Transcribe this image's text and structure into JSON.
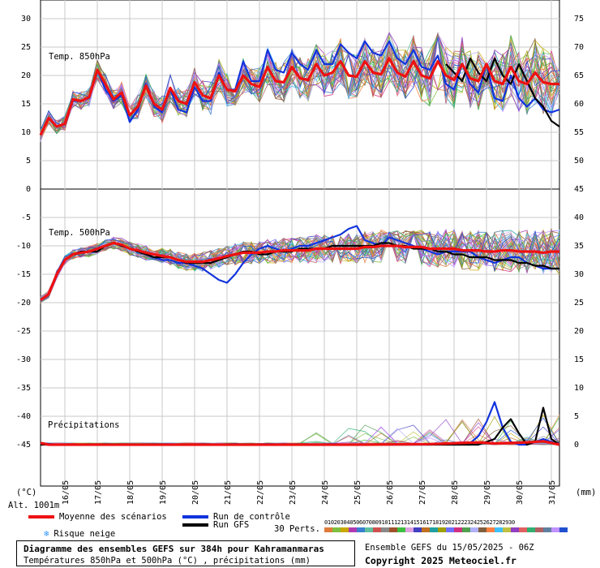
{
  "chart_data": {
    "type": "line",
    "title": "Diagramme des ensembles GEFS sur 384h pour Kahramanmaras",
    "subtitle": "Températures 850hPa et 500hPa (°C) , précipitations (mm)",
    "run_info": "Ensemble GEFS du 15/05/2025 - 06Z",
    "copyright": "Copyright 2025 Meteociel.fr",
    "altitude": "Alt. 1001m",
    "left_unit": "(°C)",
    "right_unit": "(mm)",
    "dates": [
      "16/05",
      "17/05",
      "18/05",
      "19/05",
      "20/05",
      "21/05",
      "22/05",
      "23/05",
      "24/05",
      "25/05",
      "26/05",
      "27/05",
      "28/05",
      "29/05",
      "30/05",
      "31/05"
    ],
    "left_ticks": [
      30,
      25,
      20,
      15,
      10,
      5,
      0,
      -5,
      -10,
      -15,
      -20,
      -25,
      -30,
      -35,
      -40,
      -45
    ],
    "right_ticks_upper": [
      75,
      70,
      65,
      60,
      55,
      50,
      45
    ],
    "right_ticks_lower": [
      40,
      35,
      30,
      25,
      20,
      15,
      10,
      5,
      0
    ],
    "panel_labels": {
      "t850": "Temp. 850hPa",
      "t500": "Temp. 500hPa",
      "precip": "Précipitations"
    },
    "ylim_left": [
      -45,
      30
    ],
    "x_hours": [
      0,
      384
    ],
    "legend": {
      "mean": "Moyenne des scénarios",
      "control": "Run de contrôle",
      "gfs": "Run GFS",
      "snow": "Risque neige",
      "perts": "30 Perts."
    },
    "pert_labels": [
      "01",
      "02",
      "03",
      "04",
      "05",
      "06",
      "07",
      "08",
      "09",
      "10",
      "11",
      "12",
      "13",
      "14",
      "15",
      "16",
      "17",
      "18",
      "19",
      "20",
      "21",
      "22",
      "23",
      "24",
      "25",
      "26",
      "27",
      "28",
      "29",
      "30"
    ],
    "pert_colors": [
      "#e07b39",
      "#7fbf3f",
      "#c8a800",
      "#b03ab0",
      "#3a7fd0",
      "#5fbf9f",
      "#d05050",
      "#8a8a8a",
      "#a0522d",
      "#3fbf3f",
      "#e0a0e0",
      "#4040c0",
      "#c07020",
      "#20a0a0",
      "#a0a000",
      "#7070ff",
      "#d03080",
      "#50a050",
      "#b0b0ff",
      "#806040",
      "#ff8040",
      "#40c0ff",
      "#c0c040",
      "#9040c0",
      "#e06060",
      "#30b070",
      "#b06060",
      "#6080a0",
      "#c090ff",
      "#2050d0"
    ],
    "colors": {
      "mean": "#ee1111",
      "control": "#1133dd",
      "gfs": "#000000",
      "grid": "#c8c8c8",
      "snow": "#3399ff"
    },
    "series": [
      {
        "name": "Moyenne des scénarios",
        "panel": "t850",
        "x": [
          0,
          6,
          12,
          18,
          24,
          30,
          36,
          42,
          48,
          54,
          60,
          66,
          72,
          78,
          84,
          90,
          96,
          102,
          108,
          114,
          120,
          126,
          132,
          138,
          144,
          150,
          156,
          162,
          168,
          174,
          180,
          186,
          192,
          198,
          204,
          210,
          216,
          222,
          228,
          234,
          240,
          246,
          252,
          258,
          264,
          270,
          276,
          282,
          288,
          294,
          300,
          306,
          312,
          318,
          324,
          330,
          336,
          342,
          348,
          354,
          360,
          366,
          372,
          378,
          384
        ],
        "y": [
          9.5,
          12.5,
          11,
          11.5,
          15.8,
          15.5,
          16.2,
          21,
          18.5,
          15.8,
          17,
          13,
          14.5,
          18.2,
          15,
          14,
          17.8,
          15.5,
          15,
          18.8,
          16.5,
          16,
          20,
          17.5,
          17.2,
          20,
          18.5,
          18,
          21.5,
          19,
          18.8,
          21.5,
          19.5,
          19.2,
          22,
          20,
          20.5,
          22.5,
          20,
          19.8,
          22.5,
          20.5,
          20.2,
          23,
          20.5,
          19.8,
          22.5,
          20,
          19.5,
          22.5,
          20,
          19.2,
          22,
          19.5,
          19,
          22,
          19,
          18.5,
          21.5,
          19,
          18.5,
          20.5,
          18.8,
          18.5,
          18.5
        ]
      },
      {
        "name": "Run de contrôle",
        "panel": "t850",
        "x": [
          0,
          6,
          12,
          18,
          24,
          30,
          36,
          42,
          48,
          54,
          60,
          66,
          72,
          78,
          84,
          90,
          96,
          102,
          108,
          114,
          120,
          126,
          132,
          138,
          144,
          150,
          156,
          162,
          168,
          174,
          180,
          186,
          192,
          198,
          204,
          210,
          216,
          222,
          228,
          234,
          240,
          246,
          252,
          258,
          264,
          270,
          276,
          282,
          288,
          294,
          300,
          306,
          312,
          318,
          324,
          330,
          336,
          342,
          348,
          354,
          360,
          366,
          372,
          378,
          384
        ],
        "y": [
          9.5,
          12.5,
          11,
          11.5,
          15.5,
          15.5,
          16,
          21,
          17.5,
          15.5,
          16.5,
          11.8,
          14,
          18.5,
          14.5,
          13.5,
          17.5,
          14,
          13.5,
          18,
          15.5,
          15.5,
          20.5,
          17.5,
          17.5,
          22.5,
          19,
          19,
          24.5,
          21,
          20.5,
          24,
          22,
          21,
          24.5,
          22,
          22,
          25.5,
          24,
          23,
          26,
          24,
          23.5,
          26,
          23,
          22,
          24.5,
          21.5,
          21,
          23.5,
          18.5,
          17.5,
          22,
          18.5,
          17,
          22,
          16,
          15.5,
          20,
          16,
          14.5,
          16,
          14,
          13.5,
          14
        ]
      },
      {
        "name": "Run GFS",
        "panel": "t850",
        "x": [
          300,
          306,
          312,
          318,
          324,
          330,
          336,
          342,
          348,
          354,
          360,
          366,
          372,
          378,
          384
        ],
        "y": [
          22,
          20.5,
          19,
          23,
          20.5,
          19,
          23,
          20,
          18.5,
          22,
          19,
          16,
          14.5,
          12,
          11
        ]
      },
      {
        "name": "Moyenne des scénarios",
        "panel": "t500",
        "x": [
          0,
          6,
          12,
          18,
          24,
          30,
          36,
          42,
          48,
          54,
          60,
          66,
          72,
          78,
          84,
          90,
          96,
          102,
          108,
          114,
          120,
          126,
          132,
          138,
          144,
          150,
          156,
          162,
          168,
          174,
          180,
          186,
          192,
          198,
          204,
          210,
          216,
          222,
          228,
          234,
          240,
          246,
          252,
          258,
          264,
          270,
          276,
          282,
          288,
          294,
          300,
          306,
          312,
          318,
          324,
          330,
          336,
          342,
          348,
          354,
          360,
          366,
          372,
          378,
          384
        ],
        "y": [
          -19.5,
          -18.5,
          -15,
          -12.5,
          -11.5,
          -11.2,
          -11,
          -10.5,
          -10,
          -9.5,
          -9.8,
          -10.5,
          -10.8,
          -11.2,
          -11.5,
          -11.8,
          -12,
          -12.5,
          -12.8,
          -12.8,
          -12.8,
          -12.5,
          -12.2,
          -11.8,
          -11.5,
          -11.2,
          -11.2,
          -11.2,
          -11,
          -11,
          -10.8,
          -10.8,
          -10.8,
          -10.8,
          -10.5,
          -10.5,
          -10.5,
          -10.5,
          -10.5,
          -10.5,
          -10.2,
          -10.2,
          -10,
          -10,
          -10,
          -10.2,
          -10.2,
          -10.2,
          -10.5,
          -10.5,
          -10.5,
          -10.5,
          -10.8,
          -10.8,
          -10.8,
          -11,
          -11,
          -10.8,
          -10.8,
          -11,
          -11,
          -11,
          -11.2,
          -11,
          -11
        ]
      },
      {
        "name": "Run de contrôle",
        "panel": "t500",
        "x": [
          0,
          6,
          12,
          18,
          24,
          30,
          36,
          42,
          48,
          54,
          60,
          66,
          72,
          78,
          84,
          90,
          96,
          102,
          108,
          114,
          120,
          126,
          132,
          138,
          144,
          150,
          156,
          162,
          168,
          174,
          180,
          186,
          192,
          198,
          204,
          210,
          216,
          222,
          228,
          234,
          240,
          246,
          252,
          258,
          264,
          270,
          276,
          282,
          288,
          294,
          300,
          306,
          312,
          318,
          324,
          330,
          336,
          342,
          348,
          354,
          360,
          366,
          372,
          378,
          384
        ],
        "y": [
          -19.5,
          -18.5,
          -15,
          -12.5,
          -11.5,
          -11,
          -11,
          -10.5,
          -10,
          -9.5,
          -10,
          -10.5,
          -11,
          -11.5,
          -12,
          -12.5,
          -12.5,
          -13,
          -13,
          -13.5,
          -14,
          -15,
          -16,
          -16.5,
          -15,
          -13,
          -11.5,
          -10.5,
          -10,
          -10.5,
          -11,
          -10.5,
          -10,
          -10,
          -9.5,
          -9,
          -8.5,
          -8,
          -7,
          -6.5,
          -9,
          -9.5,
          -10,
          -8.5,
          -9,
          -9.5,
          -10,
          -10.5,
          -11,
          -11.5,
          -11,
          -11,
          -11,
          -11,
          -12,
          -12.5,
          -13,
          -12.5,
          -12,
          -12,
          -13,
          -13.5,
          -14,
          -14,
          -14
        ]
      },
      {
        "name": "Run GFS",
        "panel": "t500",
        "x": [
          0,
          6,
          12,
          18,
          24,
          30,
          36,
          42,
          48,
          54,
          60,
          66,
          72,
          78,
          84,
          90,
          96,
          102,
          108,
          114,
          120,
          126,
          132,
          138,
          144,
          150,
          156,
          162,
          168,
          174,
          180,
          186,
          192,
          198,
          204,
          210,
          216,
          222,
          228,
          234,
          240,
          246,
          252,
          258,
          264,
          270,
          276,
          282,
          288,
          294,
          300,
          306,
          312,
          318,
          324,
          330,
          336,
          342,
          348,
          354,
          360,
          366,
          372,
          378,
          384
        ],
        "y": [
          -19.5,
          -18.5,
          -15,
          -12.5,
          -11.5,
          -11,
          -11,
          -11,
          -10,
          -9.5,
          -10,
          -10.5,
          -11,
          -11.5,
          -12,
          -12,
          -12,
          -12.5,
          -13,
          -13,
          -13,
          -13,
          -12.5,
          -12,
          -11.5,
          -11,
          -11,
          -11.5,
          -11.5,
          -11,
          -11,
          -11,
          -10.5,
          -10.5,
          -10.5,
          -10.5,
          -10,
          -10,
          -10,
          -10,
          -10,
          -10,
          -9.5,
          -9.5,
          -10,
          -10,
          -10.5,
          -10.5,
          -10.5,
          -11,
          -11,
          -11.5,
          -11.5,
          -12,
          -12,
          -12,
          -12.5,
          -12.5,
          -12.5,
          -13,
          -13,
          -13.5,
          -13.5,
          -14,
          -14
        ]
      },
      {
        "name": "Moyenne des scénarios",
        "panel": "precip",
        "x": [
          0,
          6,
          12,
          18,
          24,
          48,
          96,
          144,
          192,
          240,
          288,
          300,
          312,
          324,
          336,
          348,
          360,
          372,
          378,
          384
        ],
        "y": [
          0.3,
          0,
          0,
          0,
          0,
          0,
          0,
          0,
          0,
          0,
          0.1,
          0.2,
          0.3,
          0.4,
          0.2,
          0.3,
          0.4,
          0.6,
          0.3,
          0
        ]
      },
      {
        "name": "Run de contrôle",
        "panel": "precip",
        "x": [
          0,
          12,
          24,
          96,
          192,
          288,
          318,
          324,
          330,
          336,
          342,
          348,
          354,
          360,
          366,
          372,
          384
        ],
        "y": [
          0.3,
          0,
          0,
          0,
          0,
          0,
          0.3,
          1.5,
          4,
          7.5,
          3,
          0.5,
          0,
          0,
          0.5,
          1,
          0
        ]
      },
      {
        "name": "Run GFS",
        "panel": "precip",
        "x": [
          0,
          24,
          96,
          192,
          288,
          324,
          330,
          336,
          342,
          348,
          354,
          360,
          366,
          372,
          378,
          384
        ],
        "y": [
          0,
          0,
          0,
          0,
          0,
          0,
          0.5,
          1,
          3,
          4.5,
          2,
          0,
          0.5,
          6.5,
          1,
          0
        ]
      }
    ]
  }
}
